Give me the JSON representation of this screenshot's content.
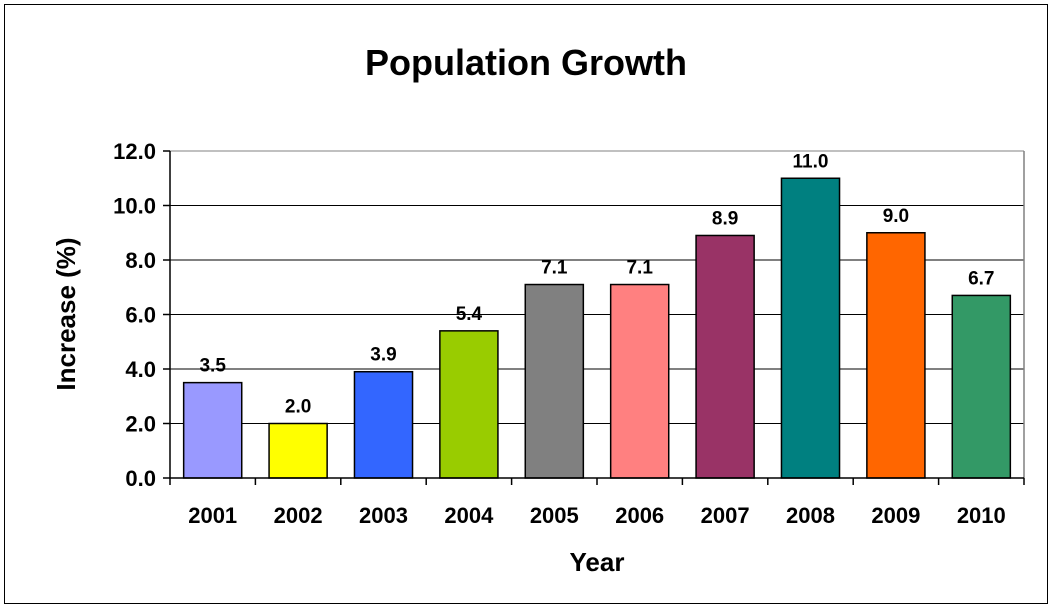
{
  "chart_data": {
    "type": "bar",
    "title": "Population Growth",
    "xlabel": "Year",
    "ylabel": "Increase (%)",
    "categories": [
      "2001",
      "2002",
      "2003",
      "2004",
      "2005",
      "2006",
      "2007",
      "2008",
      "2009",
      "2010"
    ],
    "values": [
      3.5,
      2.0,
      3.9,
      5.4,
      7.1,
      7.1,
      8.9,
      11.0,
      9.0,
      6.7
    ],
    "data_labels": [
      "3.5",
      "2.0",
      "3.9",
      "5.4",
      "7.1",
      "7.1",
      "8.9",
      "11.0",
      "9.0",
      "6.7"
    ],
    "y_ticks": [
      "0.0",
      "2.0",
      "4.0",
      "6.0",
      "8.0",
      "10.0",
      "12.0"
    ],
    "ylim": [
      0,
      12
    ],
    "grid": true,
    "legend": "none",
    "bar_colors": [
      "#9999ff",
      "#ffff00",
      "#3366ff",
      "#99cc00",
      "#808080",
      "#ff8080",
      "#993366",
      "#008080",
      "#ff6600",
      "#339966"
    ]
  }
}
